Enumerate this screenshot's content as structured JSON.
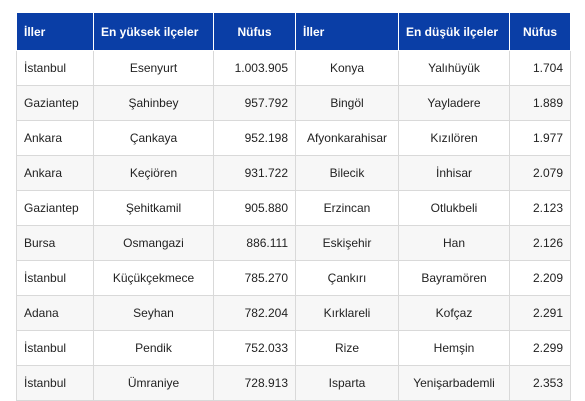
{
  "table": {
    "headers": [
      "İller",
      "En yüksek ilçeler",
      "Nüfus",
      "İller",
      "En düşük ilçeler",
      "Nüfus"
    ],
    "rows": [
      [
        "İstanbul",
        "Esenyurt",
        "1.003.905",
        "Konya",
        "Yalıhüyük",
        "1.704"
      ],
      [
        "Gaziantep",
        "Şahinbey",
        "957.792",
        "Bingöl",
        "Yayladere",
        "1.889"
      ],
      [
        "Ankara",
        "Çankaya",
        "952.198",
        "Afyonkarahisar",
        "Kızılören",
        "1.977"
      ],
      [
        "Ankara",
        "Keçiören",
        "931.722",
        "Bilecik",
        "İnhisar",
        "2.079"
      ],
      [
        "Gaziantep",
        "Şehitkamil",
        "905.880",
        "Erzincan",
        "Otlukbeli",
        "2.123"
      ],
      [
        "Bursa",
        "Osmangazi",
        "886.111",
        "Eskişehir",
        "Han",
        "2.126"
      ],
      [
        "İstanbul",
        "Küçükçekmece",
        "785.270",
        "Çankırı",
        "Bayramören",
        "2.209"
      ],
      [
        "Adana",
        "Seyhan",
        "782.204",
        "Kırklareli",
        "Kofçaz",
        "2.291"
      ],
      [
        "İstanbul",
        "Pendik",
        "752.033",
        "Rize",
        "Hemşin",
        "2.299"
      ],
      [
        "İstanbul",
        "Ümraniye",
        "728.913",
        "Isparta",
        "Yenişarbademli",
        "2.353"
      ]
    ]
  },
  "colors": {
    "header_bg": "#0a3ea6",
    "header_text": "#ffffff",
    "border": "#d9d9d9"
  }
}
